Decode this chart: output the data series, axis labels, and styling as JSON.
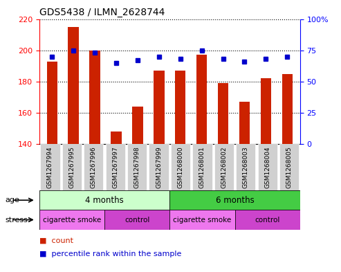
{
  "title": "GDS5438 / ILMN_2628744",
  "samples": [
    "GSM1267994",
    "GSM1267995",
    "GSM1267996",
    "GSM1267997",
    "GSM1267998",
    "GSM1267999",
    "GSM1268000",
    "GSM1268001",
    "GSM1268002",
    "GSM1268003",
    "GSM1268004",
    "GSM1268005"
  ],
  "counts": [
    193,
    215,
    200,
    148,
    164,
    187,
    187,
    197,
    179,
    167,
    182,
    185
  ],
  "percentiles": [
    70,
    75,
    73,
    65,
    67,
    70,
    68,
    75,
    68,
    66,
    68,
    70
  ],
  "ylim_left": [
    140,
    220
  ],
  "ylim_right": [
    0,
    100
  ],
  "yticks_left": [
    140,
    160,
    180,
    200,
    220
  ],
  "yticks_right": [
    0,
    25,
    50,
    75,
    100
  ],
  "bar_color": "#cc2200",
  "dot_color": "#0000cc",
  "age_groups": [
    {
      "label": "4 months",
      "start": 0,
      "end": 6,
      "color": "#ccffcc"
    },
    {
      "label": "6 months",
      "start": 6,
      "end": 12,
      "color": "#44cc44"
    }
  ],
  "stress_groups": [
    {
      "label": "cigarette smoke",
      "start": 0,
      "end": 3,
      "color": "#ee77ee"
    },
    {
      "label": "control",
      "start": 3,
      "end": 6,
      "color": "#cc44cc"
    },
    {
      "label": "cigarette smoke",
      "start": 6,
      "end": 9,
      "color": "#ee77ee"
    },
    {
      "label": "control",
      "start": 9,
      "end": 12,
      "color": "#cc44cc"
    }
  ],
  "background_color": "#ffffff",
  "plot_bg": "#ffffff",
  "bar_width": 0.5,
  "tick_bg": "#d0d0d0"
}
